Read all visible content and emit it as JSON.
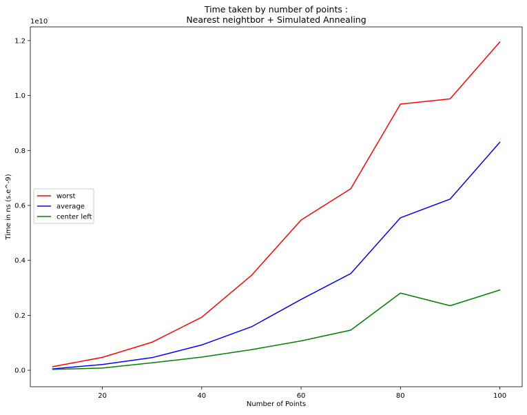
{
  "chart_data": {
    "type": "line",
    "title": "Time taken by number of points :",
    "subtitle": "Nearest neightbor + Simulated Annealing",
    "xlabel": "Number of Points",
    "ylabel": "Time in ns (s.e^-9)",
    "y_offset_text": "1e10",
    "x": [
      10,
      20,
      30,
      40,
      50,
      60,
      70,
      80,
      90,
      100
    ],
    "xlim": [
      5.5,
      104.5
    ],
    "ylim": [
      -0.06,
      1.25
    ],
    "x_ticks": [
      20,
      40,
      60,
      80,
      100
    ],
    "x_tick_labels": [
      "20",
      "40",
      "60",
      "80",
      "100"
    ],
    "y_ticks": [
      0.0,
      0.2,
      0.4,
      0.6,
      0.8,
      1.0,
      1.2
    ],
    "y_tick_labels": [
      "0.0",
      "0.2",
      "0.4",
      "0.6",
      "0.8",
      "1.0",
      "1.2"
    ],
    "grid": false,
    "legend_position": "center-left",
    "series": [
      {
        "name": "worst",
        "color": "#ff0000",
        "values": [
          0.013,
          0.047,
          0.102,
          0.193,
          0.345,
          0.547,
          0.661,
          0.969,
          0.988,
          1.195
        ]
      },
      {
        "name": "average",
        "color": "#0000ff",
        "values": [
          0.005,
          0.021,
          0.046,
          0.092,
          0.158,
          0.258,
          0.352,
          0.555,
          0.623,
          0.83
        ]
      },
      {
        "name": "center left",
        "color": "#008000",
        "values": [
          0.003,
          0.008,
          0.027,
          0.048,
          0.075,
          0.107,
          0.146,
          0.281,
          0.235,
          0.292
        ]
      }
    ]
  }
}
